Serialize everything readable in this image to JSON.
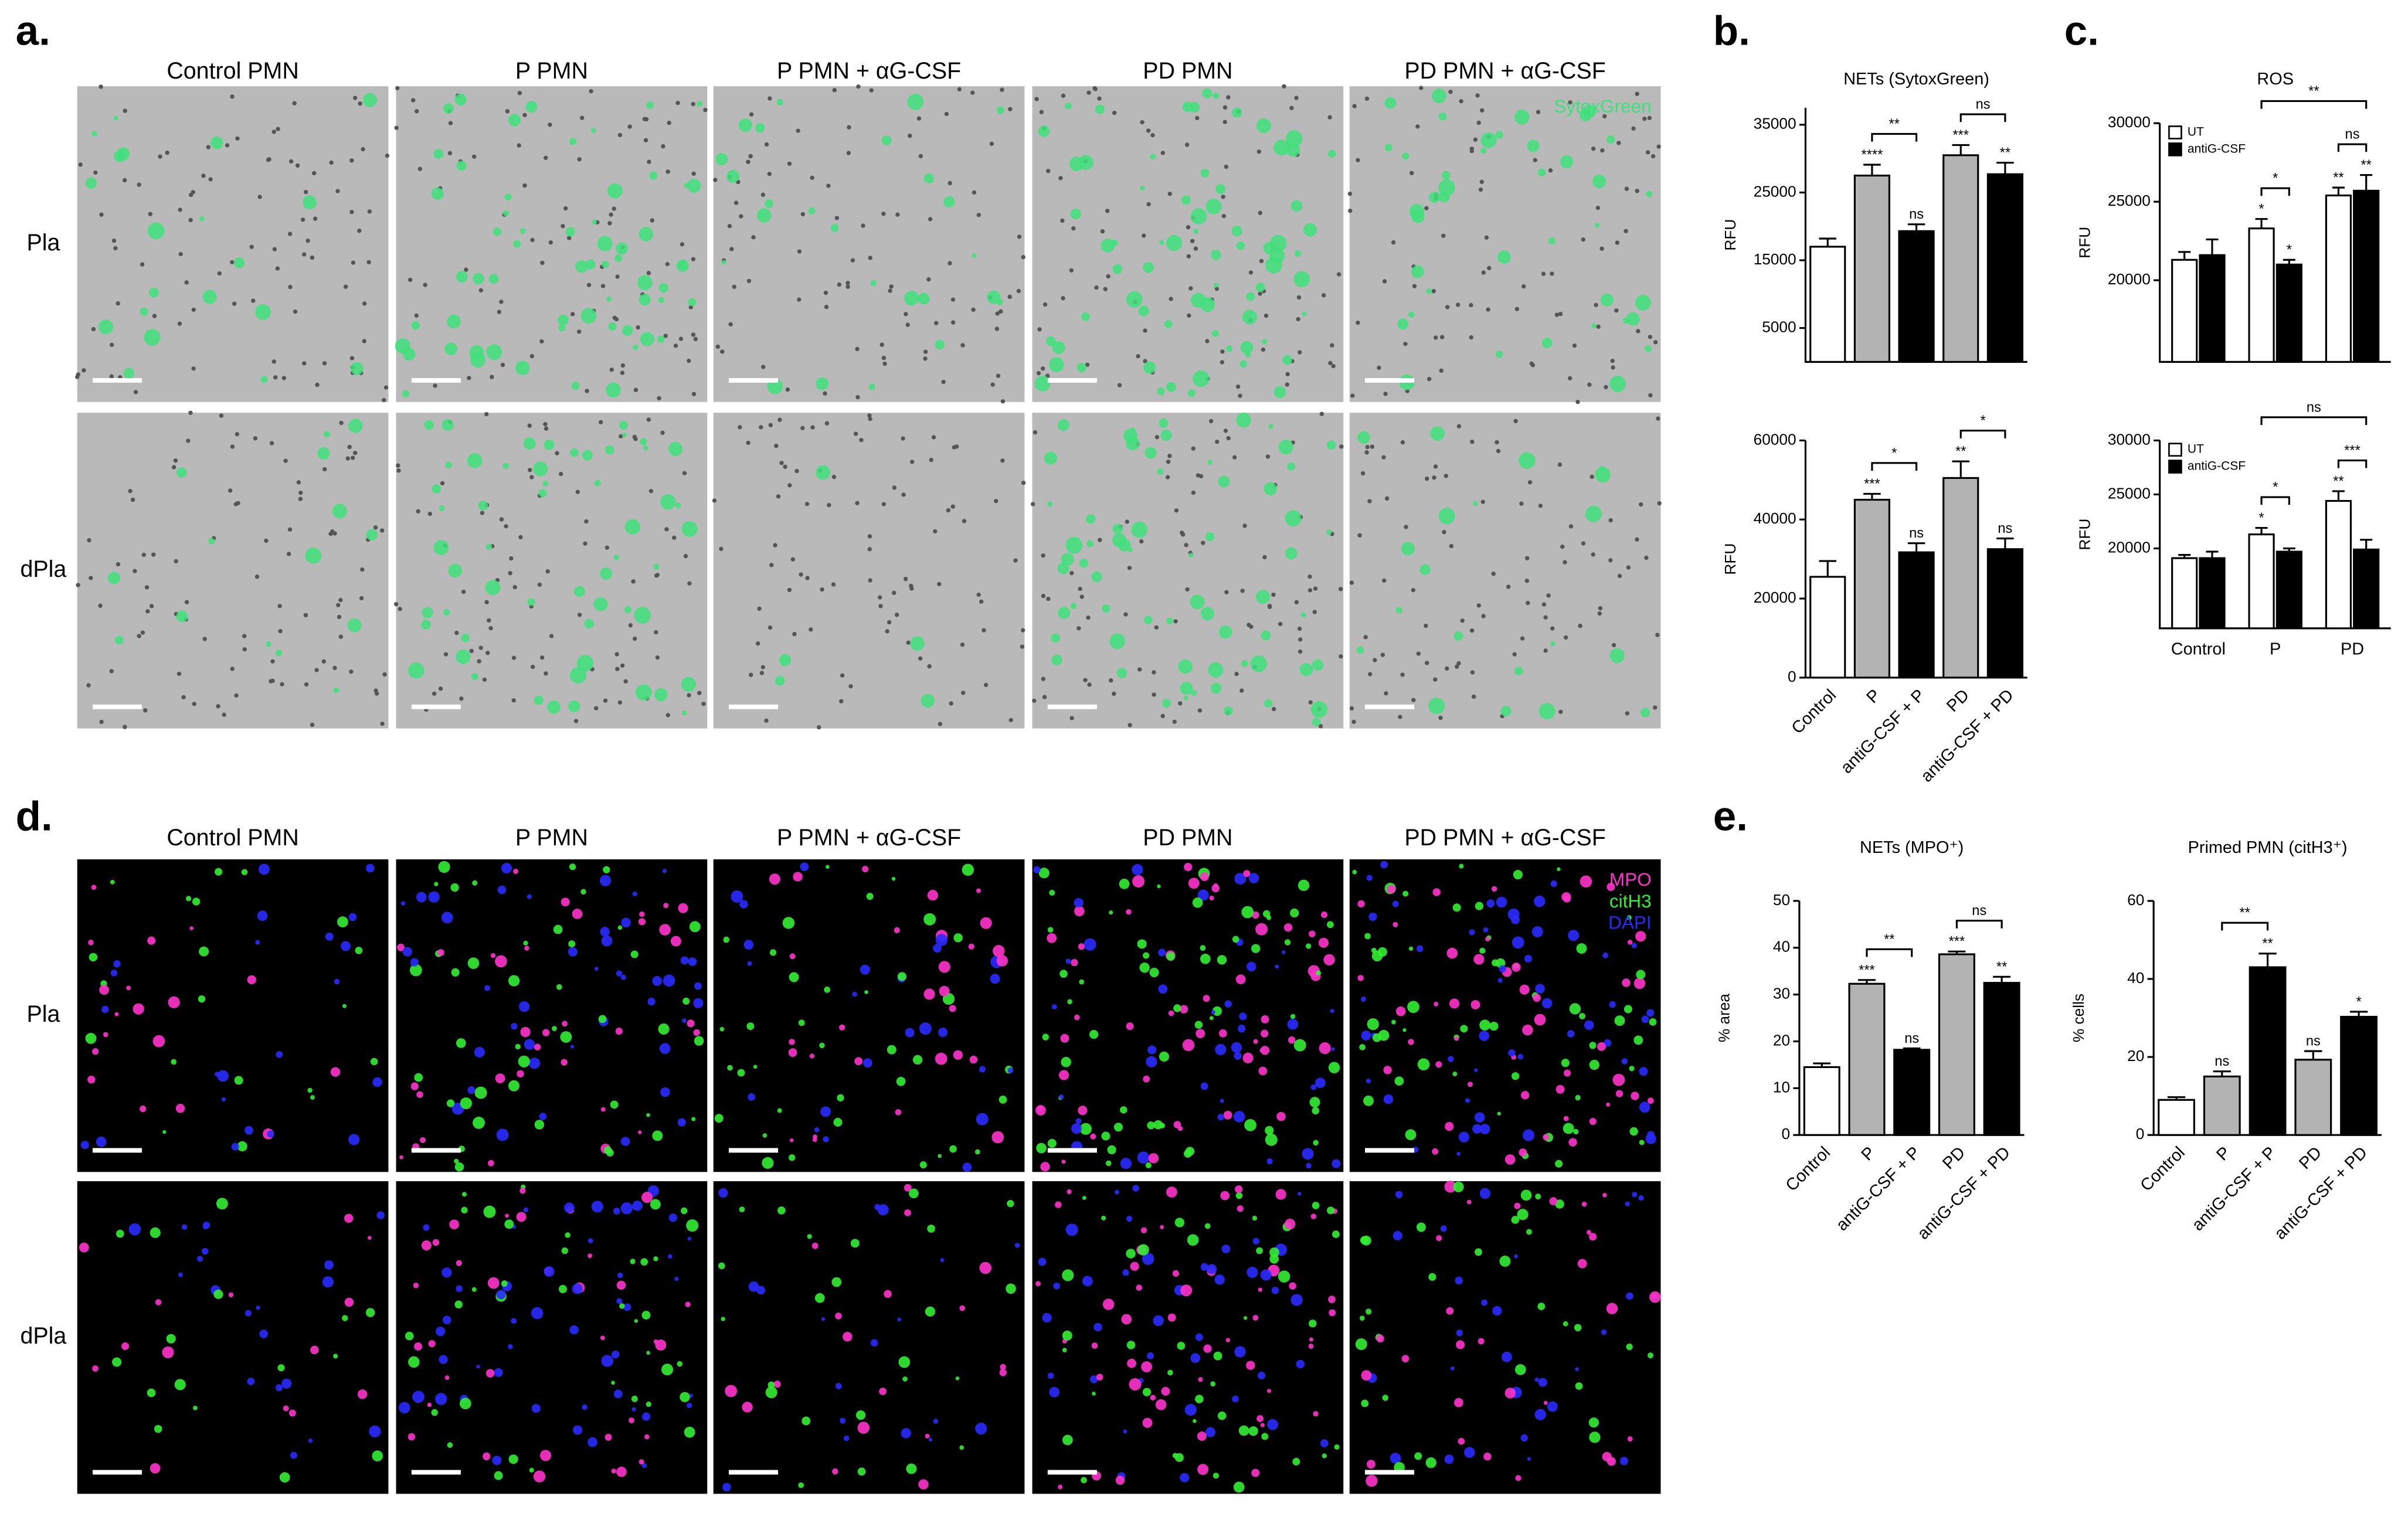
{
  "panel_labels": [
    "a.",
    "b.",
    "c.",
    "d.",
    "e."
  ],
  "micrographs": [
    {
      "columns": [
        "Control PMN",
        "P PMN",
        "P PMN + αG-CSF",
        "PD PMN",
        "PD PMN + αG-CSF"
      ],
      "rows": [
        "Pla",
        "dPla"
      ],
      "stains": [
        {
          "name": "SytoxGreen",
          "color": "#3ee07a"
        }
      ]
    },
    {
      "columns": [
        "Control PMN",
        "P PMN",
        "P PMN + αG-CSF",
        "PD PMN",
        "PD PMN + αG-CSF"
      ],
      "rows": [
        "Pla",
        "dPla"
      ],
      "stains": [
        {
          "name": "MPO",
          "color": "#ff33cc"
        },
        {
          "name": "citH3",
          "color": "#33ee33"
        },
        {
          "name": "DAPI",
          "color": "#2a2aff"
        }
      ]
    }
  ],
  "chart_data": [
    {
      "type": "bar",
      "title": "NETs (SytoxGreen)",
      "ylabel": "RFU",
      "values": [
        17000,
        27500,
        19300,
        30500,
        27700
      ],
      "errors": [
        1200,
        1600,
        1000,
        1500,
        1700
      ],
      "marks": [
        null,
        "****",
        "ns",
        "***",
        "**"
      ],
      "colors": [
        "#ffffff",
        "#b3b3b3",
        "#000000",
        "#b3b3b3",
        "#000000"
      ],
      "comparisons": [
        {
          "label": "**",
          "bars": [
            1,
            2
          ]
        },
        {
          "label": "ns",
          "bars": [
            3,
            4
          ]
        }
      ],
      "ylim": [
        0,
        37500
      ],
      "yticks": [
        5000,
        15000,
        25000,
        35000
      ]
    },
    {
      "type": "bar",
      "ylabel": "RFU",
      "categories": [
        "Control",
        "P",
        "antiG-CSF + P",
        "PD",
        "antiG-CSF + PD"
      ],
      "values": [
        25500,
        45000,
        31700,
        50500,
        32500
      ],
      "errors": [
        4000,
        1500,
        2300,
        4200,
        2700
      ],
      "marks": [
        null,
        "***",
        "ns",
        "**",
        "ns"
      ],
      "colors": [
        "#ffffff",
        "#b3b3b3",
        "#000000",
        "#b3b3b3",
        "#000000"
      ],
      "comparisons": [
        {
          "label": "*",
          "bars": [
            1,
            2
          ]
        },
        {
          "label": "*",
          "bars": [
            3,
            4
          ]
        }
      ],
      "ylim": [
        0,
        60000
      ],
      "yticks": [
        0,
        20000,
        40000,
        60000
      ]
    },
    {
      "type": "bar",
      "title": "ROS",
      "ylabel": "RFU",
      "legend": "upper left",
      "series": [
        {
          "name": "UT",
          "color": "#ffffff",
          "values": [
            21300,
            23300,
            25400
          ],
          "errors": [
            500,
            600,
            500
          ],
          "marks": [
            null,
            "*",
            "**"
          ]
        },
        {
          "name": "antiG-CSF",
          "color": "#000000",
          "values": [
            21600,
            21000,
            25700
          ],
          "errors": [
            1000,
            300,
            1000
          ],
          "marks": [
            null,
            "*",
            "**"
          ]
        }
      ],
      "comparisons": [
        {
          "label": "*",
          "bars": [
            [
              0,
              1
            ],
            [
              1,
              1
            ]
          ]
        },
        {
          "label": "ns",
          "bars": [
            [
              0,
              2
            ],
            [
              1,
              2
            ]
          ]
        },
        {
          "label": "**",
          "bars": [
            [
              0,
              1
            ],
            [
              1,
              2
            ]
          ]
        }
      ],
      "ylim": [
        14800,
        30000
      ],
      "yticks": [
        20000,
        25000,
        30000
      ]
    },
    {
      "type": "bar",
      "ylabel": "RFU",
      "legend": "upper left",
      "categories": [
        "Control",
        "P",
        "PD"
      ],
      "series": [
        {
          "name": "UT",
          "color": "#ffffff",
          "values": [
            19100,
            21300,
            24400
          ],
          "errors": [
            300,
            600,
            900
          ],
          "marks": [
            null,
            "*",
            "**"
          ]
        },
        {
          "name": "antiG-CSF",
          "color": "#000000",
          "values": [
            19100,
            19700,
            19900
          ],
          "errors": [
            600,
            300,
            900
          ]
        }
      ],
      "comparisons": [
        {
          "label": "*",
          "bars": [
            [
              0,
              1
            ],
            [
              1,
              1
            ]
          ]
        },
        {
          "label": "***",
          "bars": [
            [
              0,
              2
            ],
            [
              1,
              2
            ]
          ]
        },
        {
          "label": "ns",
          "bars": [
            [
              0,
              1
            ],
            [
              1,
              2
            ]
          ]
        }
      ],
      "ylim": [
        12600,
        30000
      ],
      "yticks": [
        20000,
        25000,
        30000
      ]
    },
    {
      "type": "bar",
      "title": "NETs (MPO⁺)",
      "ylabel": "% area",
      "categories": [
        "Control",
        "P",
        "antiG-CSF + P",
        "PD",
        "antiG-CSF + PD"
      ],
      "values": [
        14.5,
        32.3,
        18.2,
        38.6,
        32.5
      ],
      "errors": [
        0.8,
        0.8,
        0.3,
        0.6,
        1.3
      ],
      "marks": [
        null,
        "***",
        "ns",
        "***",
        "**"
      ],
      "colors": [
        "#ffffff",
        "#b3b3b3",
        "#000000",
        "#b3b3b3",
        "#000000"
      ],
      "comparisons": [
        {
          "label": "**",
          "bars": [
            1,
            2
          ]
        },
        {
          "label": "ns",
          "bars": [
            3,
            4
          ]
        }
      ],
      "ylim": [
        0,
        50
      ],
      "yticks": [
        0,
        10,
        20,
        30,
        40,
        50
      ]
    },
    {
      "type": "bar",
      "title": "Primed PMN (citH3⁺)",
      "ylabel": "% cells",
      "categories": [
        "Control",
        "P",
        "antiG-CSF + P",
        "PD",
        "antiG-CSF + PD"
      ],
      "values": [
        9,
        15,
        43,
        19.3,
        30.3
      ],
      "errors": [
        0.7,
        1.3,
        3.5,
        2.2,
        1.3
      ],
      "marks": [
        null,
        "ns",
        "**",
        "ns",
        "*"
      ],
      "colors": [
        "#ffffff",
        "#b3b3b3",
        "#000000",
        "#b3b3b3",
        "#000000"
      ],
      "comparisons": [
        {
          "label": "**",
          "bars": [
            1,
            2
          ]
        }
      ],
      "ylim": [
        0,
        60
      ],
      "yticks": [
        0,
        20,
        40,
        60
      ]
    }
  ]
}
